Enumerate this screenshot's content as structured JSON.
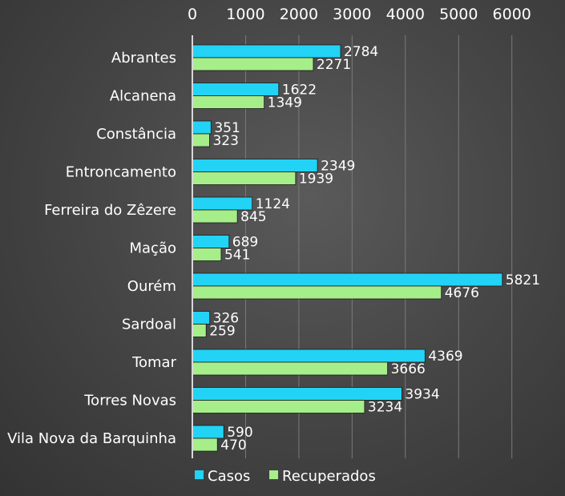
{
  "chart_data": {
    "type": "bar",
    "orientation": "horizontal",
    "categories": [
      "Abrantes",
      "Alcanena",
      "Constância",
      "Entroncamento",
      "Ferreira do Zêzere",
      "Mação",
      "Ourém",
      "Sardoal",
      "Tomar",
      "Torres Novas",
      "Vila Nova da Barquinha"
    ],
    "series": [
      {
        "name": "Casos",
        "color": "#22d3f5",
        "values": [
          2784,
          1622,
          351,
          2349,
          1124,
          689,
          5821,
          326,
          4369,
          3934,
          590
        ]
      },
      {
        "name": "Recuperados",
        "color": "#a6ee8a",
        "values": [
          2271,
          1349,
          323,
          1939,
          845,
          541,
          4676,
          259,
          3666,
          3234,
          470
        ]
      }
    ],
    "xlim": [
      0,
      6000
    ],
    "xticks": [
      0,
      1000,
      2000,
      3000,
      4000,
      5000,
      6000
    ],
    "x_axis_position": "top",
    "grid": true,
    "legend": "bottom-left",
    "data_labels": true
  }
}
